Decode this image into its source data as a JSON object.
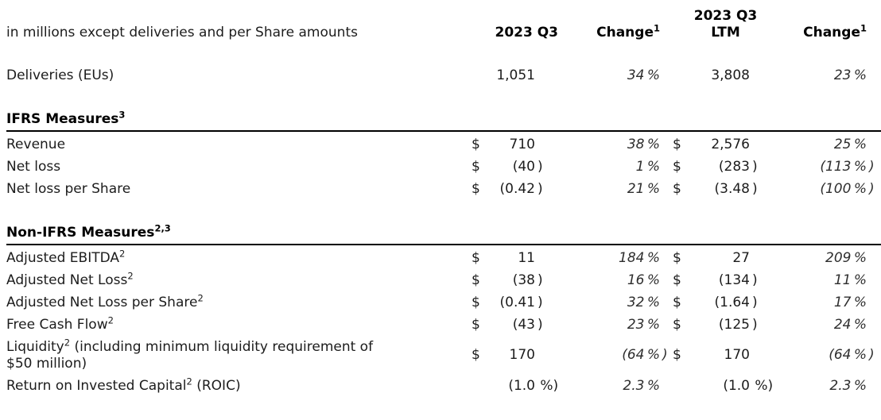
{
  "colors": {
    "text": "#1c1c1c",
    "heading": "#000000",
    "rule": "#000000",
    "background": "#ffffff"
  },
  "table": {
    "caption": "in millions except deliveries and per Share amounts",
    "col_headers": {
      "q3": "2023 Q3",
      "change1": "Change",
      "change1_sup": "1",
      "ltm_line1": "2023 Q3",
      "ltm_line2": "LTM",
      "change2": "Change",
      "change2_sup": "1"
    },
    "rows": [
      {
        "type": "data",
        "label_pre": "Deliveries (EUs)",
        "label_sup": "",
        "label_post": "",
        "d1": "",
        "v1": "1,051",
        "vs1": "",
        "c1": "34 %",
        "cs1": "",
        "d2": "",
        "v2": "3,808",
        "vs2": "",
        "c2": "23 %",
        "cs2": ""
      },
      {
        "type": "section",
        "label_pre": "IFRS Measures",
        "label_sup": "3"
      },
      {
        "type": "data",
        "label_pre": "Revenue",
        "label_sup": "",
        "label_post": "",
        "d1": "$",
        "v1": "710",
        "vs1": "",
        "c1": "38 %",
        "cs1": "",
        "d2": "$",
        "v2": "2,576",
        "vs2": "",
        "c2": "25 %",
        "cs2": ""
      },
      {
        "type": "data",
        "label_pre": "Net loss",
        "label_sup": "",
        "label_post": "",
        "d1": "$",
        "v1": "(40",
        "vs1": ")",
        "c1": "1 %",
        "cs1": "",
        "d2": "$",
        "v2": "(283",
        "vs2": ")",
        "c2": "(113 %",
        "cs2": ")"
      },
      {
        "type": "data",
        "label_pre": "Net loss per Share",
        "label_sup": "",
        "label_post": "",
        "d1": "$",
        "v1": "(0.42",
        "vs1": ")",
        "c1": "21 %",
        "cs1": "",
        "d2": "$",
        "v2": "(3.48",
        "vs2": ")",
        "c2": "(100 %",
        "cs2": ")"
      },
      {
        "type": "section",
        "label_pre": "Non-IFRS Measures",
        "label_sup": "2,3"
      },
      {
        "type": "data",
        "label_pre": "Adjusted EBITDA",
        "label_sup": "2",
        "label_post": "",
        "d1": "$",
        "v1": "11",
        "vs1": "",
        "c1": "184 %",
        "cs1": "",
        "d2": "$",
        "v2": "27",
        "vs2": "",
        "c2": "209 %",
        "cs2": ""
      },
      {
        "type": "data",
        "label_pre": "Adjusted Net Loss",
        "label_sup": "2",
        "label_post": "",
        "d1": "$",
        "v1": "(38",
        "vs1": ")",
        "c1": "16 %",
        "cs1": "",
        "d2": "$",
        "v2": "(134",
        "vs2": ")",
        "c2": "11 %",
        "cs2": ""
      },
      {
        "type": "data",
        "label_pre": "Adjusted Net Loss per Share",
        "label_sup": "2",
        "label_post": "",
        "d1": "$",
        "v1": "(0.41",
        "vs1": ")",
        "c1": "32 %",
        "cs1": "",
        "d2": "$",
        "v2": "(1.64",
        "vs2": ")",
        "c2": "17 %",
        "cs2": ""
      },
      {
        "type": "data",
        "label_pre": "Free Cash Flow",
        "label_sup": "2",
        "label_post": "",
        "d1": "$",
        "v1": "(43",
        "vs1": ")",
        "c1": "23 %",
        "cs1": "",
        "d2": "$",
        "v2": "(125",
        "vs2": ")",
        "c2": "24 %",
        "cs2": ""
      },
      {
        "type": "data",
        "label_pre": "Liquidity",
        "label_sup": "2",
        "label_post": " (including minimum liquidity requirement of\n$50 million)",
        "d1": "$",
        "v1": "170",
        "vs1": "",
        "c1": "(64 %",
        "cs1": ")",
        "d2": "$",
        "v2": "170",
        "vs2": "",
        "c2": "(64 %",
        "cs2": ")"
      },
      {
        "type": "data",
        "label_pre": "Return on Invested Capital",
        "label_sup": "2",
        "label_post": " (ROIC)",
        "d1": "",
        "v1": "(1.0",
        "vs1": " %)",
        "c1": "2.3 %",
        "cs1": "",
        "d2": "",
        "v2": "(1.0",
        "vs2": " %)",
        "c2": "2.3 %",
        "cs2": ""
      }
    ]
  }
}
